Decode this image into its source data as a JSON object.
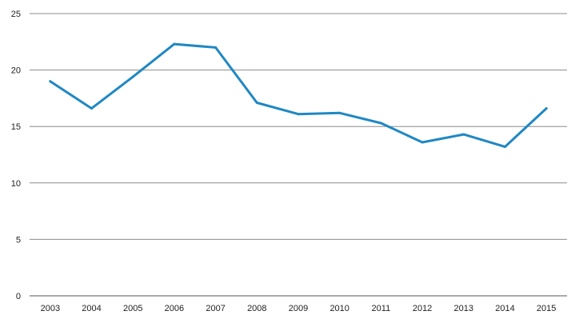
{
  "chart_data": {
    "type": "line",
    "title": "",
    "xlabel": "",
    "ylabel": "",
    "categories": [
      "2003",
      "2004",
      "2005",
      "2006",
      "2007",
      "2008",
      "2009",
      "2010",
      "2011",
      "2012",
      "2013",
      "2014",
      "2015"
    ],
    "ylim": [
      0,
      25
    ],
    "yticks": [
      0,
      5,
      10,
      15,
      20,
      25
    ],
    "grid": true,
    "legend": "none",
    "series": [
      {
        "values": [
          19.0,
          16.6,
          19.4,
          22.3,
          22.0,
          17.1,
          16.1,
          16.2,
          15.3,
          13.6,
          14.3,
          13.2,
          16.6
        ],
        "color": "#1f88c4"
      }
    ]
  }
}
